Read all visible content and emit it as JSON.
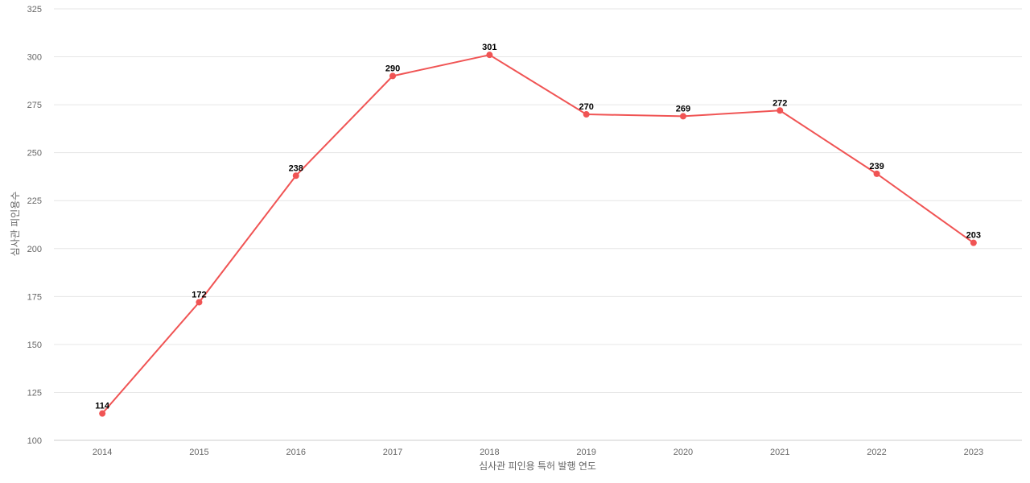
{
  "chart_data": {
    "type": "line",
    "title": "",
    "xlabel": "심사관 피인용 특허 발행 연도",
    "ylabel": "심사관 피인용수",
    "categories": [
      "2014",
      "2015",
      "2016",
      "2017",
      "2018",
      "2019",
      "2020",
      "2021",
      "2022",
      "2023"
    ],
    "series": [
      {
        "values": [
          114,
          172,
          238,
          290,
          301,
          270,
          269,
          272,
          239,
          203
        ]
      }
    ],
    "ylim": [
      100,
      325
    ],
    "yticks": [
      100,
      125,
      150,
      175,
      200,
      225,
      250,
      275,
      300,
      325
    ],
    "grid": true,
    "legend": "none",
    "colors": {
      "line": "#f05454",
      "marker": "#f05454",
      "grid": "#e6e6e6",
      "axis": "#cccccc",
      "tick_text": "#666666",
      "data_label": "#000000"
    }
  }
}
